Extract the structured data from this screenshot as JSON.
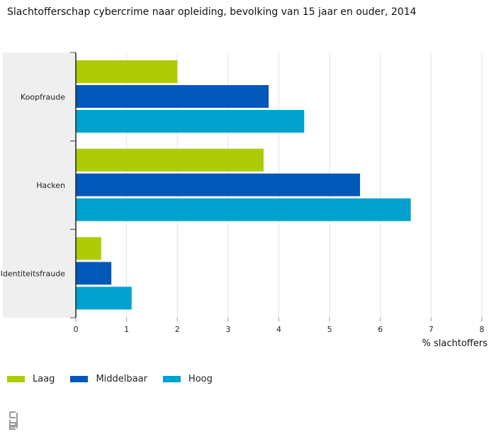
{
  "chart_data": {
    "type": "bar",
    "orientation": "horizontal",
    "title": "Slachtofferschap cybercrime naar opleiding, bevolking van 15 jaar en ouder, 2014",
    "categories": [
      "Koopfraude",
      "Hacken",
      "Identiteitsfraude"
    ],
    "series": [
      {
        "name": "Laag",
        "color": "#afcb05",
        "values": [
          2.0,
          3.7,
          0.5
        ]
      },
      {
        "name": "Middelbaar",
        "color": "#0058b8",
        "values": [
          3.8,
          5.6,
          0.7
        ]
      },
      {
        "name": "Hoog",
        "color": "#00a1cd",
        "values": [
          4.5,
          6.6,
          1.1
        ]
      }
    ],
    "xlabel": "% slachtoffers",
    "xlim": [
      0,
      8
    ],
    "xticks": [
      "0",
      "1",
      "2",
      "3",
      "4",
      "5",
      "6",
      "7",
      "8"
    ],
    "grid": true,
    "legend_position": "bottom-left"
  }
}
